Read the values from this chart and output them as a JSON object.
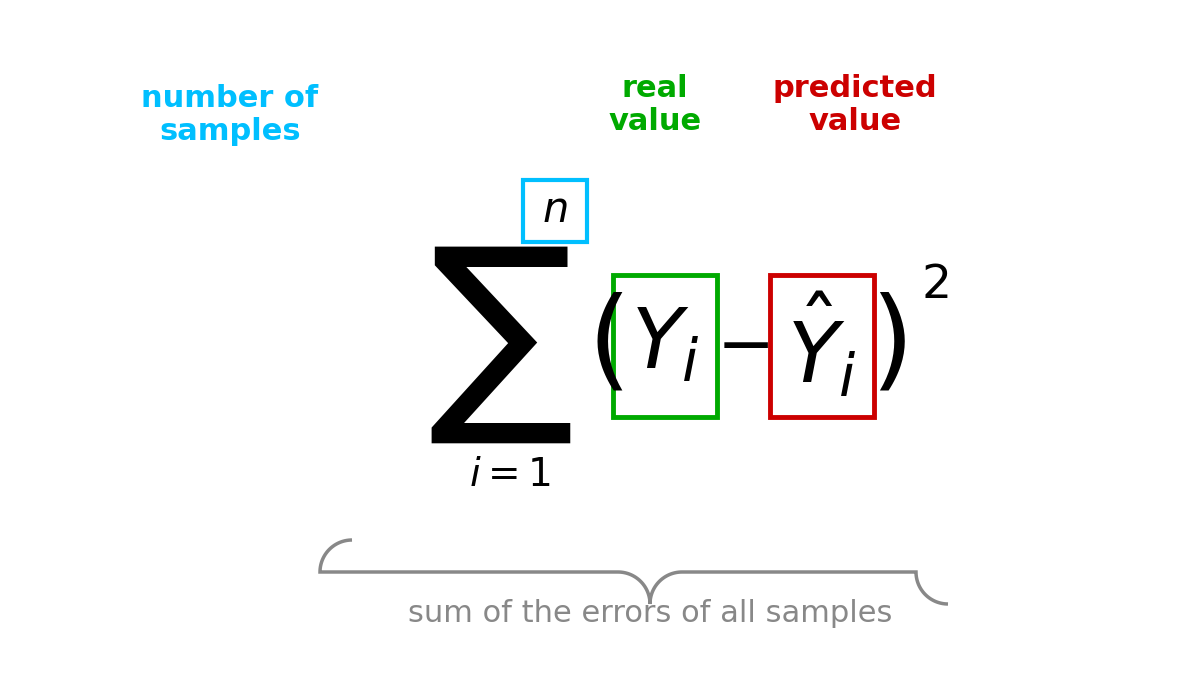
{
  "bg_color": "#ffffff",
  "cyan_color": "#00bfff",
  "green_color": "#00aa00",
  "red_color": "#cc0000",
  "black_color": "#000000",
  "gray_color": "#888888",
  "label_number_of_samples": "number of\nsamples",
  "label_real_value": "real\nvalue",
  "label_predicted_value": "predicted\nvalue",
  "label_bottom": "sum of the errors of all samples",
  "formula_sum": "$\\sum$",
  "formula_n": "$n$",
  "formula_i1": "$i=1$",
  "formula_Yi": "$Y_i$",
  "formula_Yhat": "$\\hat{Y}_i$",
  "formula_minus": "$-$",
  "formula_paren_l": "$(\\vphantom{Y_i}$",
  "formula_paren_r": "$)^2$",
  "figsize": [
    12.0,
    6.75
  ],
  "dpi": 100
}
